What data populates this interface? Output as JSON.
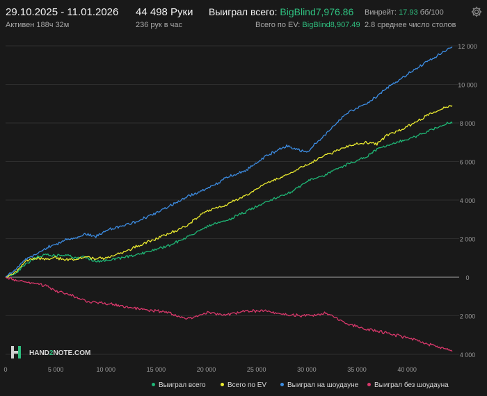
{
  "header": {
    "date_range": "29.10.2025 - 11.01.2026",
    "active": "Активен 188ч 32м",
    "hands": "44 498 Руки",
    "hands_per_hour": "236 рук в час",
    "won_total_label": "Выиграл всего:",
    "won_total_value": "BigBlind7,976.86",
    "ev_label": "Всего по EV:",
    "ev_value": "BigBlind8,907.49",
    "winrate_label": "Винрейт:",
    "winrate_value": "17.93",
    "winrate_unit": "бб/100",
    "tables_avg": "2.8 среднее число столов"
  },
  "logo": {
    "text_a": "HAND",
    "text_b": "2",
    "text_c": "NOTE.COM"
  },
  "icons": {
    "settings": "gear-icon"
  },
  "colors": {
    "background": "#191919",
    "grid": "#2e2e2e",
    "zero_line": "#8a8a8a",
    "green": "#1fb776",
    "yellow": "#ecec30",
    "blue": "#3d8de3",
    "red": "#d8386b"
  },
  "chart_data": {
    "type": "line",
    "xlim": [
      0,
      44498
    ],
    "ylim": [
      -4000,
      12000
    ],
    "x_ticks": [
      0,
      5000,
      10000,
      15000,
      20000,
      25000,
      30000,
      35000,
      40000
    ],
    "x_tick_labels": [
      "0",
      "5 000",
      "10 000",
      "15 000",
      "20 000",
      "25 000",
      "30 000",
      "35 000",
      "40 000"
    ],
    "y_ticks": [
      -4000,
      -2000,
      0,
      2000,
      4000,
      6000,
      8000,
      10000,
      12000
    ],
    "y_tick_labels": [
      "4 000",
      "2 000",
      "0",
      "2 000",
      "4 000",
      "6 000",
      "8 000",
      "10 000",
      "12 000"
    ],
    "grid": true,
    "legend_position": "bottom-right",
    "series": [
      {
        "name": "Выиграл всего",
        "color": "#1fb776",
        "x": [
          0,
          1000,
          2000,
          3000,
          4000,
          5000,
          6000,
          7000,
          8000,
          9000,
          10000,
          12000,
          14000,
          16000,
          18000,
          20000,
          22000,
          24000,
          26000,
          28000,
          30000,
          32000,
          34000,
          36000,
          37000,
          38000,
          40000,
          42000,
          44000,
          44498
        ],
        "y": [
          0,
          200,
          650,
          1050,
          1150,
          1100,
          1150,
          1000,
          1050,
          800,
          850,
          1050,
          1300,
          1600,
          2050,
          2600,
          2950,
          3400,
          3950,
          4300,
          4950,
          5350,
          5850,
          6250,
          6650,
          6800,
          7150,
          7550,
          8000,
          7977
        ]
      },
      {
        "name": "Всего по EV",
        "color": "#ecec30",
        "x": [
          0,
          1000,
          2000,
          3000,
          4000,
          5000,
          6000,
          7000,
          8000,
          9000,
          10000,
          12000,
          14000,
          16000,
          18000,
          20000,
          22000,
          24000,
          26000,
          28000,
          30000,
          32000,
          34000,
          36000,
          37000,
          38000,
          40000,
          42000,
          44000,
          44498
        ],
        "y": [
          0,
          250,
          850,
          1000,
          950,
          1000,
          900,
          950,
          1050,
          950,
          1000,
          1350,
          1800,
          2200,
          2650,
          3450,
          3750,
          4250,
          4900,
          5300,
          5850,
          6350,
          6800,
          7000,
          6900,
          7350,
          7800,
          8400,
          8850,
          8907
        ]
      },
      {
        "name": "Выиграл на шоудауне",
        "color": "#3d8de3",
        "x": [
          0,
          1000,
          2000,
          3000,
          4000,
          5000,
          6000,
          7000,
          8000,
          9000,
          10000,
          12000,
          14000,
          16000,
          18000,
          20000,
          22000,
          24000,
          26000,
          28000,
          30000,
          32000,
          34000,
          36000,
          38000,
          40000,
          42000,
          44000,
          44498
        ],
        "y": [
          0,
          400,
          950,
          1200,
          1500,
          1700,
          1950,
          2050,
          2250,
          2100,
          2450,
          2700,
          3100,
          3600,
          4150,
          4550,
          5150,
          5550,
          6300,
          6800,
          6500,
          7500,
          8500,
          9000,
          9800,
          10500,
          11200,
          11800,
          11950
        ]
      },
      {
        "name": "Выиграл без шоудауна",
        "color": "#d8386b",
        "x": [
          0,
          1000,
          2000,
          3000,
          4000,
          5000,
          6000,
          7000,
          8000,
          10000,
          12000,
          14000,
          16000,
          18000,
          20000,
          22000,
          24000,
          26000,
          28000,
          30000,
          32000,
          34000,
          36000,
          38000,
          40000,
          42000,
          44000,
          44498
        ],
        "y": [
          0,
          -150,
          -250,
          -350,
          -450,
          -700,
          -850,
          -1000,
          -1250,
          -1350,
          -1550,
          -1700,
          -1800,
          -2150,
          -1850,
          -1950,
          -1750,
          -1750,
          -1950,
          -2000,
          -1850,
          -2400,
          -2700,
          -2900,
          -3150,
          -3450,
          -3750,
          -3850
        ]
      }
    ]
  },
  "legend": [
    {
      "label": "Выиграл всего",
      "color": "#1fb776"
    },
    {
      "label": "Всего по EV",
      "color": "#ecec30"
    },
    {
      "label": "Выиграл на шоудауне",
      "color": "#3d8de3"
    },
    {
      "label": "Выиграл без шоудауна",
      "color": "#d8386b"
    }
  ]
}
